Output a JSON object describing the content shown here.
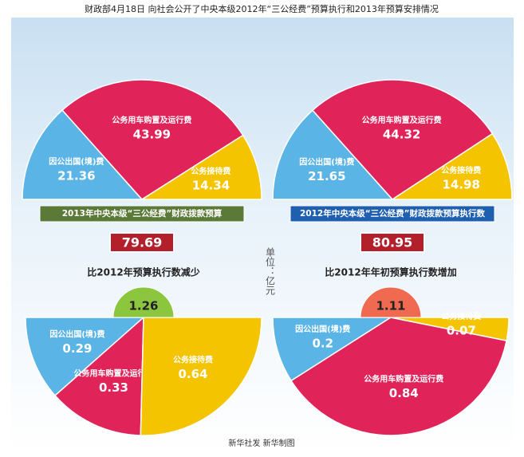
{
  "title": "财政部4月18日 向社会公开了中央本级2012年“三公经费”预算执行和2013年预算安排情况",
  "unit_label": "单位：亿元",
  "source": "新华社发 新华制图",
  "chart_data": [
    {
      "type": "pie",
      "title": "2013年中央本级“三公经费”财政拨款预算",
      "total": 79.69,
      "categories": [
        "因公出国(境)费",
        "公务用车购置及运行费",
        "公务接待费"
      ],
      "values": [
        21.36,
        43.99,
        14.34
      ],
      "colors": [
        "#5ab4e6",
        "#e0245a",
        "#f5c400"
      ],
      "title_color": "#5b7a38",
      "total_color": "#b3202c"
    },
    {
      "type": "pie",
      "title": "2012年中央本级“三公经费”财政拨款预算执行数",
      "total": 80.95,
      "categories": [
        "因公出国(境)费",
        "公务用车购置及运行费",
        "公务接待费"
      ],
      "values": [
        21.65,
        44.32,
        14.98
      ],
      "colors": [
        "#5ab4e6",
        "#e0245a",
        "#f5c400"
      ],
      "title_color": "#1f5fb0",
      "total_color": "#b3202c"
    },
    {
      "type": "pie",
      "title": "比2012年预算执行数减少",
      "total": 1.26,
      "categories": [
        "因公出国(境)费",
        "公务用车购置及运行费",
        "公务接待费"
      ],
      "values": [
        0.29,
        0.33,
        0.64
      ],
      "colors": [
        "#5ab4e6",
        "#e0245a",
        "#f5c400"
      ],
      "total_color": "#8cc63f"
    },
    {
      "type": "pie",
      "title": "比2012年年初预算执行数增加",
      "total": 1.11,
      "categories": [
        "因公出国(境)费",
        "公务用车购置及运行费",
        "公务接待费"
      ],
      "values": [
        0.2,
        0.84,
        0.07
      ],
      "colors": [
        "#5ab4e6",
        "#e0245a",
        "#f5c400"
      ],
      "total_color": "#ef6a50"
    }
  ]
}
